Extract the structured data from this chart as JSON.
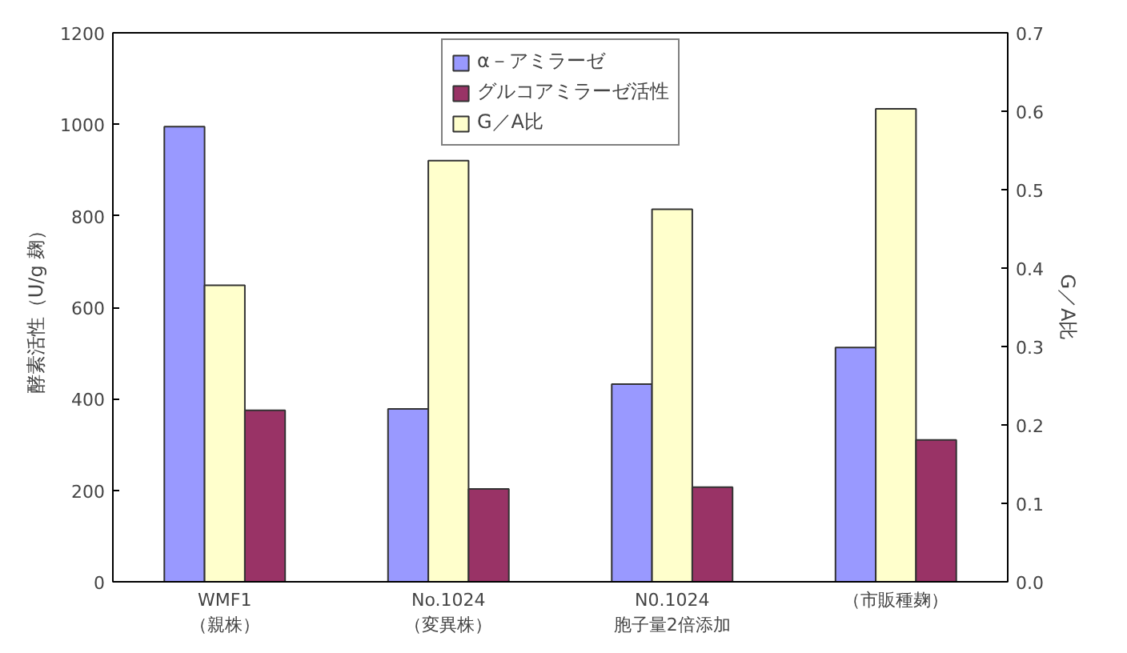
{
  "chart_data": {
    "type": "bar",
    "ylabel": "酵素活性（U/g 麹）",
    "y2label": "G／A比",
    "categories": [
      "WMF1\n（親株）",
      "No.1024\n（変異株）",
      "N0.1024\n胞子量2倍添加",
      "（市販種麹）"
    ],
    "series": [
      {
        "name": "α－アミラーゼ",
        "color": "#9999ff",
        "values": [
          995,
          378,
          432,
          512
        ]
      },
      {
        "name": "グルコアミラーゼ活性",
        "color": "#993366",
        "values": [
          375,
          203,
          207,
          310
        ]
      },
      {
        "name": "G／A比",
        "color": "#ffffcc",
        "values": [
          0.378,
          0.537,
          0.475,
          0.603
        ],
        "axis": "y2"
      }
    ],
    "ylim": [
      0,
      1200
    ],
    "yticks": [
      0,
      200,
      400,
      600,
      800,
      1000,
      1200
    ],
    "y2lim": [
      0,
      0.7
    ],
    "y2ticks": [
      {
        "value": 0,
        "label": "0.0"
      },
      0.1,
      0.2,
      0.3,
      0.4,
      0.5,
      0.6,
      0.7
    ],
    "grid": false,
    "legend": "top"
  }
}
